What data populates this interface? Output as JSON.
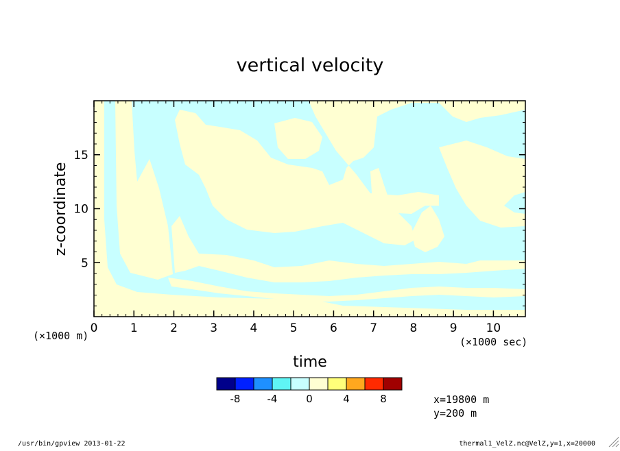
{
  "chart_data": {
    "type": "heatmap",
    "title": "vertical velocity",
    "xlabel": "time",
    "ylabel": "z-coordinate",
    "x_unit_note": "(×1000 sec)",
    "y_unit_note": "(×1000 m)",
    "xlim": [
      0,
      10.8
    ],
    "ylim": [
      0,
      20
    ],
    "x_ticks": [
      "0",
      "1",
      "2",
      "3",
      "4",
      "5",
      "6",
      "7",
      "8",
      "9",
      "10"
    ],
    "y_ticks": [
      "5",
      "10",
      "15"
    ],
    "field_levels_shown": [
      {
        "range": "-2..0",
        "color": "#c8ffff"
      },
      {
        "range": "0..2",
        "color": "#ffffd2"
      }
    ],
    "colorbar": {
      "colors": [
        "#00008b",
        "#0020ff",
        "#1e90ff",
        "#5ff5f5",
        "#c8ffff",
        "#ffffd2",
        "#ffff7a",
        "#ffa81e",
        "#ff2a00",
        "#a00000"
      ],
      "tick_labels": [
        "-8",
        "-4",
        "0",
        "4",
        "8"
      ],
      "tick_values": [
        -8,
        -4,
        0,
        4,
        8
      ],
      "range": [
        -10,
        10
      ]
    },
    "info": [
      "x=19800 m",
      "y=200 m"
    ]
  },
  "footer": {
    "left": "/usr/bin/gpview  2013-01-22",
    "right": "thermal1_VelZ.nc@VelZ,y=1,x=20000"
  }
}
